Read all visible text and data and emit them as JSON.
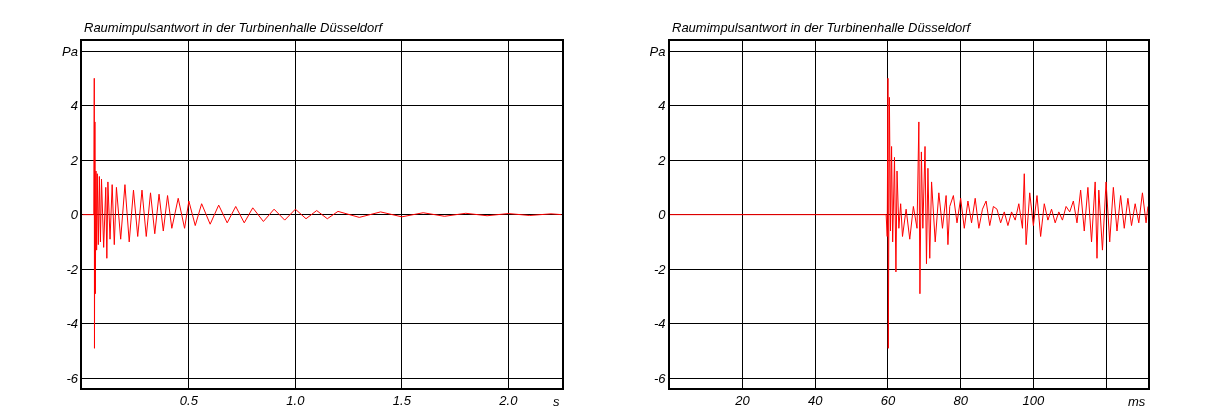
{
  "chart_data": [
    {
      "type": "line",
      "title": "Raumimpulsantwort in der Turbinenhalle Düsseldorf",
      "xlabel": "s",
      "grid": true,
      "marker": "none",
      "line_style": "solid",
      "xlim": [
        0,
        2.25
      ],
      "xticks": [
        0.5,
        {
          "value": 1,
          "label": "1.0"
        },
        1.5,
        {
          "value": 2,
          "label": "2.0"
        }
      ],
      "ylim": [
        -6.36,
        6.36
      ],
      "yticks": [
        -6,
        -4,
        -2,
        0,
        2,
        4,
        {
          "value": 6,
          "label": "Pa"
        }
      ],
      "series": [
        {
          "color": "#ff0000",
          "x": [
            0,
            0.054,
            0.056,
            0.057,
            0.059,
            0.061,
            0.064,
            0.067,
            0.07,
            0.075,
            0.08,
            0.085,
            0.09,
            0.1,
            0.11,
            0.115,
            0.12,
            0.13,
            0.14,
            0.15,
            0.16,
            0.18,
            0.2,
            0.22,
            0.24,
            0.26,
            0.28,
            0.3,
            0.32,
            0.34,
            0.36,
            0.38,
            0.4,
            0.42,
            0.45,
            0.48,
            0.5,
            0.53,
            0.56,
            0.6,
            0.64,
            0.68,
            0.72,
            0.76,
            0.8,
            0.85,
            0.9,
            0.95,
            1.0,
            1.05,
            1.1,
            1.15,
            1.2,
            1.3,
            1.4,
            1.5,
            1.6,
            1.7,
            1.8,
            1.9,
            2.0,
            2.1,
            2.2,
            2.25
          ],
          "values": [
            0,
            0,
            5.0,
            -4.9,
            3.4,
            -2.9,
            1.6,
            -1.3,
            1.5,
            -1.1,
            1.4,
            -1.0,
            1.3,
            -1.2,
            1.0,
            -1.6,
            1.2,
            -0.9,
            1.1,
            -1.1,
            1.0,
            -0.9,
            1.1,
            -1.0,
            0.9,
            -0.8,
            0.9,
            -0.8,
            0.8,
            -0.7,
            0.75,
            -0.6,
            0.7,
            -0.5,
            0.6,
            -0.5,
            0.5,
            -0.4,
            0.4,
            -0.35,
            0.35,
            -0.3,
            0.3,
            -0.3,
            0.25,
            -0.25,
            0.2,
            -0.2,
            0.2,
            -0.15,
            0.15,
            -0.15,
            0.12,
            -0.1,
            0.1,
            -0.08,
            0.07,
            -0.06,
            0.05,
            -0.04,
            0.04,
            -0.03,
            0.03,
            0.0
          ]
        }
      ]
    },
    {
      "type": "line",
      "title": "Raumimpulsantwort in der Turbinenhalle Düsseldorf",
      "xlabel": "ms",
      "grid": true,
      "marker": "none",
      "line_style": "solid",
      "xlim": [
        0,
        131.5
      ],
      "xticks": [
        20,
        40,
        60,
        80,
        100,
        {
          "value": 120,
          "label": null
        }
      ],
      "ylim": [
        -6.36,
        6.36
      ],
      "yticks": [
        -6,
        -4,
        -2,
        0,
        2,
        4,
        {
          "value": 6,
          "label": "Pa"
        }
      ],
      "series": [
        {
          "color": "#ff0000",
          "x": [
            0,
            59.5,
            59.8,
            60.0,
            60.1,
            60.4,
            60.7,
            61,
            61.3,
            61.8,
            62.2,
            62.5,
            63,
            63.5,
            64,
            65,
            66,
            67,
            68,
            68.5,
            68.8,
            69.2,
            69.6,
            70.2,
            70.6,
            71,
            71.5,
            72,
            73,
            74,
            75,
            76,
            76.5,
            77,
            78,
            79,
            80,
            81,
            82,
            83,
            84,
            85,
            86,
            87,
            88,
            89,
            90,
            91,
            92,
            93,
            94,
            95,
            96,
            97,
            97.5,
            98,
            99,
            100,
            101,
            102,
            103,
            104,
            105,
            106,
            107,
            108,
            109,
            110,
            111,
            112,
            113,
            114,
            115,
            116,
            117,
            117.5,
            118,
            119,
            120,
            121,
            122,
            123,
            124,
            125,
            126,
            127,
            128,
            129,
            130,
            131,
            131.5
          ],
          "values": [
            0,
            0,
            -0.8,
            5.0,
            -4.9,
            4.3,
            -0.6,
            2.5,
            -1,
            2.1,
            -2.1,
            1.6,
            -0.5,
            0.4,
            -0.8,
            0.2,
            -0.9,
            0.3,
            -0.5,
            3.4,
            -2.9,
            2.3,
            -0.5,
            2.5,
            -1.8,
            1.7,
            -1.6,
            1.2,
            -1.0,
            0.8,
            -0.5,
            0.7,
            -1.1,
            0.3,
            0.7,
            -0.3,
            0.6,
            -0.5,
            0.5,
            -0.3,
            0.6,
            -0.5,
            0.2,
            0.5,
            -0.4,
            0.3,
            0.2,
            -0.3,
            0.1,
            -0.4,
            0.1,
            -0.2,
            0.4,
            -0.5,
            1.5,
            -1.1,
            0.8,
            -0.4,
            0.7,
            -0.8,
            0.4,
            -0.2,
            0.2,
            -0.3,
            0.1,
            -0.2,
            0.3,
            0.1,
            0.5,
            -0.3,
            0.9,
            -0.6,
            1.0,
            -1.0,
            1.2,
            -1.6,
            0.9,
            -1.3,
            1.2,
            -1.0,
            1.0,
            -0.6,
            0.7,
            -0.5,
            0.6,
            -0.4,
            0.4,
            -0.3,
            0.8,
            -0.3,
            0.3
          ]
        }
      ]
    }
  ]
}
